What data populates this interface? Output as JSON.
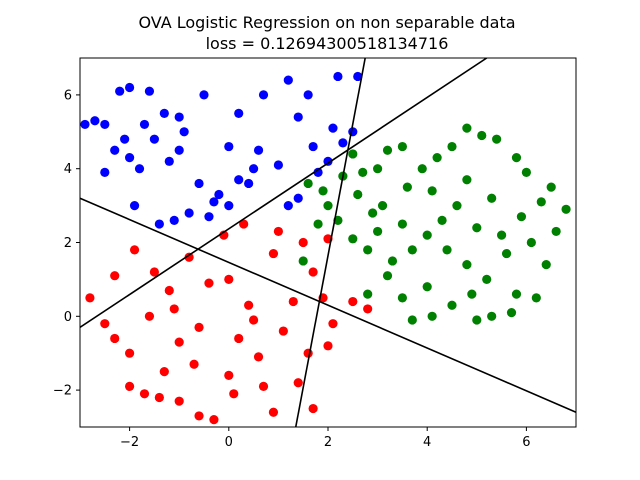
{
  "chart_data": {
    "type": "scatter",
    "title": "OVA Logistic Regression on non separable data",
    "subtitle": "loss = 0.12694300518134716",
    "xlabel": "",
    "ylabel": "",
    "xlim": [
      -3.0,
      7.0
    ],
    "ylim": [
      -3.0,
      7.0
    ],
    "x_ticks": [
      -2,
      0,
      2,
      4,
      6
    ],
    "y_ticks": [
      -2,
      0,
      2,
      4,
      6
    ],
    "x_tick_labels": [
      "−2",
      "0",
      "2",
      "4",
      "6"
    ],
    "y_tick_labels": [
      "−2",
      "0",
      "2",
      "4",
      "6"
    ],
    "grid": false,
    "colors": {
      "blue": "#0000ff",
      "red": "#ff0000",
      "green": "#008000",
      "line": "#000000",
      "axes": "#000000"
    },
    "series": [
      {
        "color": "blue",
        "points": [
          [
            -2.9,
            5.2
          ],
          [
            -2.7,
            5.3
          ],
          [
            -2.5,
            5.2
          ],
          [
            -2.2,
            6.1
          ],
          [
            -2.0,
            6.2
          ],
          [
            -1.6,
            6.1
          ],
          [
            -1.3,
            5.5
          ],
          [
            -1.0,
            5.4
          ],
          [
            -0.5,
            6.0
          ],
          [
            0.2,
            5.5
          ],
          [
            0.7,
            6.0
          ],
          [
            1.2,
            6.4
          ],
          [
            1.6,
            6.0
          ],
          [
            2.2,
            6.5
          ],
          [
            2.6,
            6.5
          ],
          [
            -2.5,
            3.9
          ],
          [
            -2.3,
            4.5
          ],
          [
            -2.0,
            4.3
          ],
          [
            -1.8,
            4.0
          ],
          [
            -1.5,
            4.8
          ],
          [
            -1.2,
            4.2
          ],
          [
            -1.0,
            4.5
          ],
          [
            -0.6,
            3.6
          ],
          [
            -0.3,
            3.1
          ],
          [
            0.2,
            3.7
          ],
          [
            0.6,
            4.5
          ],
          [
            1.0,
            4.1
          ],
          [
            1.4,
            3.2
          ],
          [
            1.7,
            4.6
          ],
          [
            2.0,
            4.2
          ],
          [
            2.5,
            5.0
          ],
          [
            -1.4,
            2.5
          ],
          [
            -1.1,
            2.6
          ],
          [
            -0.8,
            2.8
          ],
          [
            -0.4,
            2.7
          ],
          [
            0.0,
            3.0
          ],
          [
            -1.9,
            3.0
          ],
          [
            -0.2,
            3.3
          ],
          [
            0.4,
            3.6
          ],
          [
            -2.1,
            4.8
          ],
          [
            -1.7,
            5.2
          ],
          [
            0.0,
            4.6
          ],
          [
            0.5,
            4.0
          ],
          [
            1.8,
            3.9
          ],
          [
            1.2,
            3.0
          ],
          [
            2.3,
            4.7
          ],
          [
            -0.9,
            5.0
          ],
          [
            1.4,
            5.4
          ],
          [
            2.1,
            5.1
          ]
        ]
      },
      {
        "color": "red",
        "points": [
          [
            -2.8,
            0.5
          ],
          [
            -2.5,
            -0.2
          ],
          [
            -2.3,
            -0.6
          ],
          [
            -2.0,
            -1.9
          ],
          [
            -1.7,
            -2.1
          ],
          [
            -1.4,
            -2.2
          ],
          [
            -1.0,
            -2.3
          ],
          [
            -0.6,
            -2.7
          ],
          [
            -0.3,
            -2.8
          ],
          [
            0.1,
            -2.1
          ],
          [
            0.7,
            -1.9
          ],
          [
            1.4,
            -1.8
          ],
          [
            1.7,
            -2.5
          ],
          [
            -1.9,
            1.8
          ],
          [
            -1.5,
            1.2
          ],
          [
            -1.2,
            0.7
          ],
          [
            -0.8,
            1.6
          ],
          [
            -0.4,
            0.9
          ],
          [
            0.0,
            1.0
          ],
          [
            0.4,
            0.3
          ],
          [
            0.9,
            1.7
          ],
          [
            1.3,
            0.4
          ],
          [
            1.7,
            1.2
          ],
          [
            2.1,
            -0.2
          ],
          [
            2.5,
            0.4
          ],
          [
            2.8,
            0.2
          ],
          [
            -1.6,
            0.0
          ],
          [
            -1.0,
            -0.7
          ],
          [
            -0.6,
            -0.3
          ],
          [
            0.2,
            -0.6
          ],
          [
            0.6,
            -1.1
          ],
          [
            1.1,
            -0.4
          ],
          [
            1.6,
            -1.0
          ],
          [
            2.0,
            -0.8
          ],
          [
            -2.3,
            1.1
          ],
          [
            -0.1,
            2.2
          ],
          [
            0.3,
            2.5
          ],
          [
            1.0,
            2.3
          ],
          [
            1.5,
            2.0
          ],
          [
            2.0,
            2.1
          ],
          [
            -1.3,
            -1.5
          ],
          [
            -0.7,
            -1.3
          ],
          [
            0.0,
            -1.6
          ],
          [
            0.9,
            -2.6
          ],
          [
            -2.0,
            -1.0
          ],
          [
            -1.1,
            0.2
          ],
          [
            0.5,
            -0.1
          ],
          [
            1.9,
            0.5
          ]
        ]
      },
      {
        "color": "green",
        "points": [
          [
            1.5,
            1.5
          ],
          [
            1.8,
            2.5
          ],
          [
            2.2,
            2.6
          ],
          [
            2.5,
            2.1
          ],
          [
            2.8,
            1.8
          ],
          [
            3.0,
            2.3
          ],
          [
            3.3,
            1.5
          ],
          [
            3.5,
            0.5
          ],
          [
            3.7,
            -0.1
          ],
          [
            4.1,
            0.0
          ],
          [
            4.5,
            0.3
          ],
          [
            5.0,
            -0.1
          ],
          [
            5.3,
            0.0
          ],
          [
            5.8,
            0.6
          ],
          [
            6.2,
            0.5
          ],
          [
            6.6,
            2.3
          ],
          [
            6.8,
            2.9
          ],
          [
            6.5,
            3.5
          ],
          [
            6.0,
            3.9
          ],
          [
            5.8,
            4.3
          ],
          [
            5.4,
            4.8
          ],
          [
            5.1,
            4.9
          ],
          [
            4.8,
            5.1
          ],
          [
            4.5,
            4.6
          ],
          [
            4.2,
            4.3
          ],
          [
            3.9,
            4.0
          ],
          [
            3.5,
            4.6
          ],
          [
            3.2,
            4.5
          ],
          [
            3.0,
            4.0
          ],
          [
            2.7,
            3.9
          ],
          [
            2.5,
            4.4
          ],
          [
            2.3,
            3.8
          ],
          [
            1.9,
            3.4
          ],
          [
            1.6,
            3.6
          ],
          [
            2.0,
            3.0
          ],
          [
            2.6,
            3.3
          ],
          [
            3.1,
            3.0
          ],
          [
            3.5,
            2.5
          ],
          [
            4.0,
            2.2
          ],
          [
            4.4,
            1.8
          ],
          [
            4.8,
            1.4
          ],
          [
            5.2,
            1.0
          ],
          [
            5.6,
            1.7
          ],
          [
            6.1,
            2.0
          ],
          [
            5.0,
            2.4
          ],
          [
            4.6,
            3.0
          ],
          [
            4.1,
            3.4
          ],
          [
            3.7,
            1.8
          ],
          [
            3.2,
            1.1
          ],
          [
            2.8,
            0.6
          ],
          [
            4.8,
            3.7
          ],
          [
            5.3,
            3.2
          ],
          [
            5.9,
            2.7
          ],
          [
            6.3,
            3.1
          ],
          [
            4.3,
            2.6
          ],
          [
            3.6,
            3.5
          ],
          [
            2.9,
            2.8
          ],
          [
            5.5,
            2.2
          ],
          [
            6.4,
            1.4
          ],
          [
            4.0,
            0.8
          ],
          [
            4.9,
            0.6
          ],
          [
            5.7,
            0.1
          ]
        ]
      }
    ],
    "lines": [
      {
        "x": [
          1.35,
          2.75
        ],
        "y": [
          -3.0,
          7.0
        ]
      },
      {
        "x": [
          -3.0,
          5.2
        ],
        "y": [
          -0.3,
          7.0
        ]
      },
      {
        "x": [
          -3.0,
          7.0
        ],
        "y": [
          3.2,
          -2.6
        ]
      }
    ]
  }
}
